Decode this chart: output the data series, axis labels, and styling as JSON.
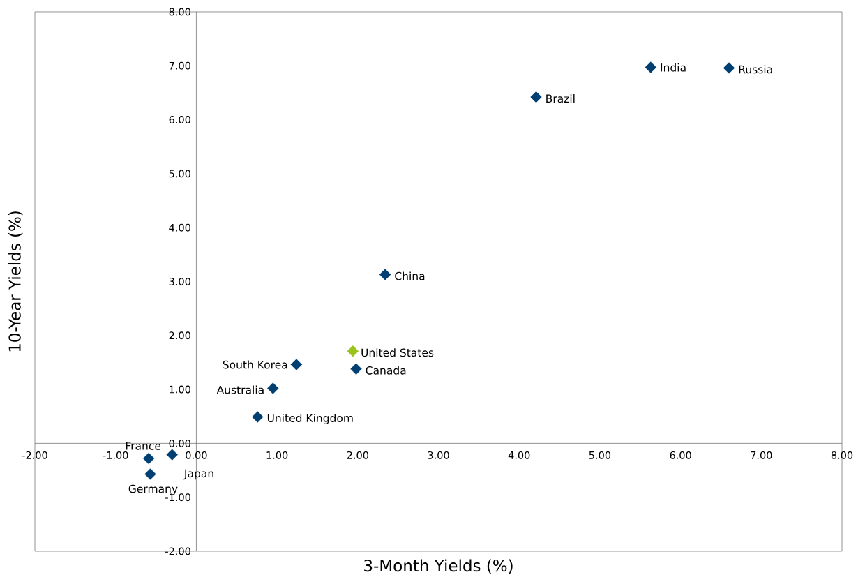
{
  "chart_data": {
    "type": "scatter",
    "xlabel": "3-Month Yields (%)",
    "ylabel": "10-Year Yields (%)",
    "marker": "diamond",
    "grid": false,
    "legend": false,
    "xlim": [
      -2,
      8
    ],
    "ylim": [
      -2,
      8
    ],
    "xticks": [
      {
        "value": -2,
        "label": "-2.00"
      },
      {
        "value": -1,
        "label": "-1.00"
      },
      {
        "value": 0,
        "label": "0.00"
      },
      {
        "value": 1,
        "label": "1.00"
      },
      {
        "value": 2,
        "label": "2.00"
      },
      {
        "value": 3,
        "label": "3.00"
      },
      {
        "value": 4,
        "label": "4.00"
      },
      {
        "value": 5,
        "label": "5.00"
      },
      {
        "value": 6,
        "label": "6.00"
      },
      {
        "value": 7,
        "label": "7.00"
      },
      {
        "value": 8,
        "label": "8.00"
      }
    ],
    "yticks": [
      {
        "value": -2,
        "label": "-2.00"
      },
      {
        "value": -1,
        "label": "-1.00"
      },
      {
        "value": 0,
        "label": "0.00"
      },
      {
        "value": 1,
        "label": "1.00"
      },
      {
        "value": 2,
        "label": "2.00"
      },
      {
        "value": 3,
        "label": "3.00"
      },
      {
        "value": 4,
        "label": "4.00"
      },
      {
        "value": 5,
        "label": "5.00"
      },
      {
        "value": 6,
        "label": "6.00"
      },
      {
        "value": 7,
        "label": "7.00"
      },
      {
        "value": 8,
        "label": "8.00"
      }
    ],
    "series": [
      {
        "x": [
          5.63,
          6.6,
          4.21,
          2.34,
          1.94,
          1.98,
          1.24,
          0.95,
          0.76,
          -0.59,
          -0.3,
          -0.57
        ],
        "values": [
          6.97,
          6.96,
          6.42,
          3.13,
          1.71,
          1.38,
          1.46,
          1.02,
          0.49,
          -0.28,
          -0.21,
          -0.57
        ],
        "colors": [
          "#003f72",
          "#003f72",
          "#003f72",
          "#003f72",
          "#9ac31c",
          "#003f72",
          "#003f72",
          "#003f72",
          "#003f72",
          "#003f72",
          "#003f72",
          "#003f72"
        ]
      }
    ],
    "annotations": [
      {
        "text": "India",
        "x": 5.63,
        "y": 6.97
      },
      {
        "text": "Russia",
        "x": 6.6,
        "y": 6.96
      },
      {
        "text": "Brazil",
        "x": 4.21,
        "y": 6.42
      },
      {
        "text": "China",
        "x": 2.34,
        "y": 3.13
      },
      {
        "text": "United States",
        "x": 1.94,
        "y": 1.71
      },
      {
        "text": "Canada",
        "x": 1.98,
        "y": 1.38
      },
      {
        "text": "South Korea",
        "x": 1.24,
        "y": 1.46
      },
      {
        "text": "Australia",
        "x": 0.95,
        "y": 1.02
      },
      {
        "text": "United Kingdom",
        "x": 0.76,
        "y": 0.49
      },
      {
        "text": "France",
        "x": -0.59,
        "y": -0.28
      },
      {
        "text": "Japan",
        "x": -0.3,
        "y": -0.21
      },
      {
        "text": "Germany",
        "x": -0.57,
        "y": -0.57
      }
    ]
  }
}
